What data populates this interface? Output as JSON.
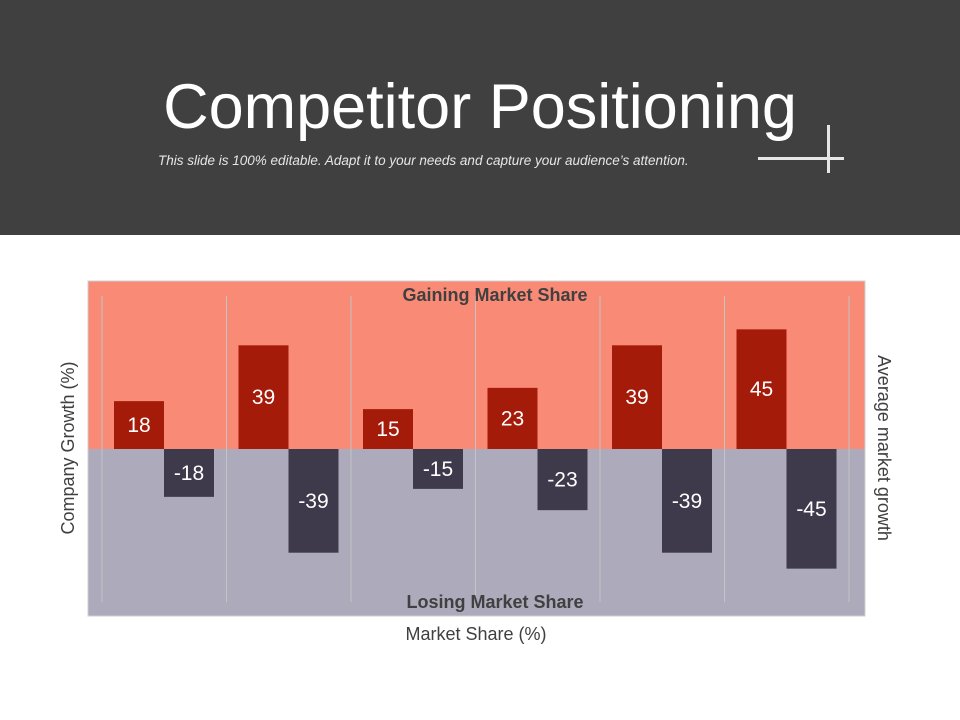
{
  "slide": {
    "title": "Competitor Positioning",
    "subtitle": "This slide is 100% editable. Adapt it to your needs and capture your audience’s attention."
  },
  "colors": {
    "header_bg": "#404040",
    "gaining_zone": "#f98a76",
    "losing_zone": "#adaabb",
    "positive_bar": "#a51b0a",
    "negative_bar": "#3e3a4c"
  },
  "chart_data": {
    "type": "bar",
    "categories": [
      "",
      "",
      "",
      "",
      "",
      ""
    ],
    "series": [
      {
        "values": [
          18,
          39,
          15,
          23,
          39,
          45
        ]
      },
      {
        "values": [
          -18,
          -39,
          -15,
          -23,
          -39,
          -45
        ]
      }
    ],
    "ylim": [
      -63,
      63
    ],
    "xlabel": "Market Share (%)",
    "ylabel": "Company Growth (%)",
    "y2label": "Average market growth",
    "upper_zone_label": "Gaining Market Share",
    "lower_zone_label": "Losing Market Share",
    "data_labels": true,
    "grid": "vertical"
  }
}
